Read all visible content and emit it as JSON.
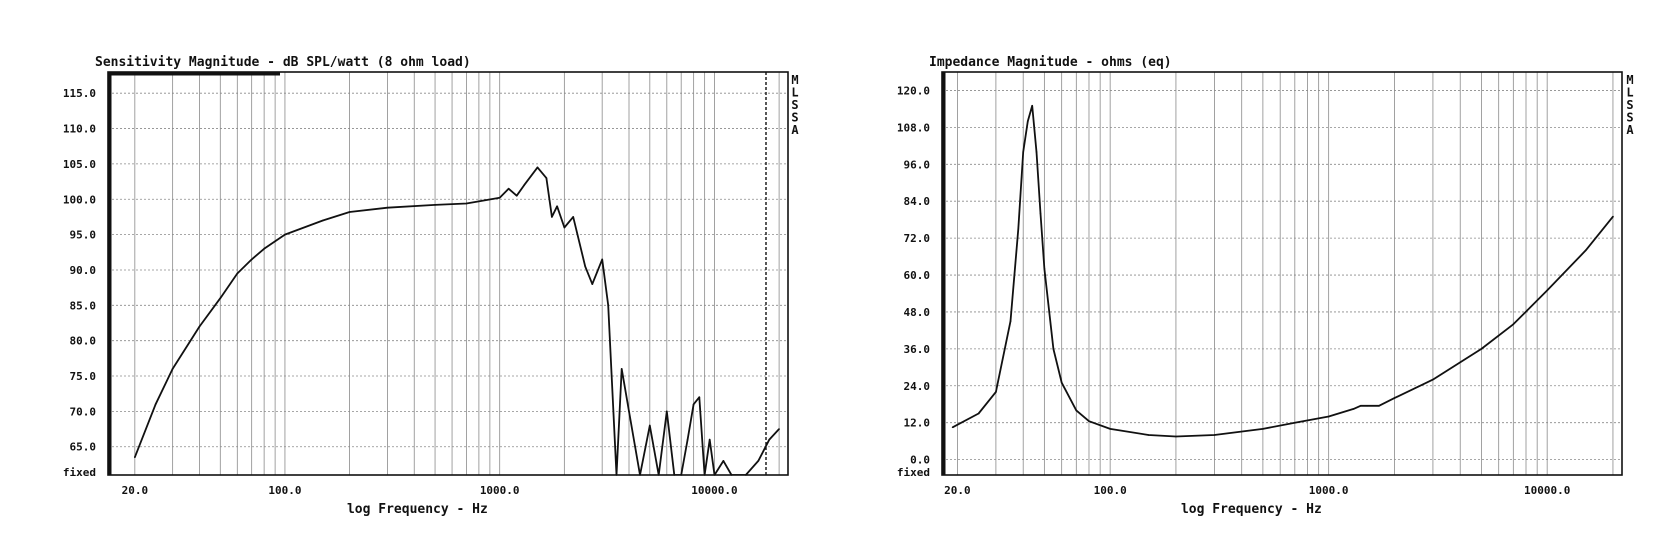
{
  "footer_label": "fixed",
  "watermark": "MLSSA",
  "chart_data": [
    {
      "type": "line",
      "title": "Sensitivity Magnitude - dB SPL/watt (8 ohm load)",
      "xlabel": "log Frequency - Hz",
      "ylabel": "",
      "xscale": "log",
      "xlim": [
        15,
        22000
      ],
      "ylim": [
        61,
        118
      ],
      "x_ticks": [
        20,
        100,
        1000,
        10000
      ],
      "x_tick_labels": [
        "20.0",
        "100.0",
        "1000.0",
        "10000.0"
      ],
      "y_ticks": [
        65,
        70,
        75,
        80,
        85,
        90,
        95,
        100,
        105,
        110,
        115
      ],
      "y_tick_labels": [
        "65.0",
        "70.0",
        "75.0",
        "80.0",
        "85.0",
        "90.0",
        "95.0",
        "100.0",
        "105.0",
        "110.0",
        "115.0"
      ],
      "grid": true,
      "series": [
        {
          "x": [
            20,
            25,
            30,
            40,
            50,
            60,
            70,
            80,
            100,
            150,
            200,
            300,
            500,
            700,
            1000,
            1100,
            1200,
            1300,
            1500,
            1650,
            1750,
            1850,
            2000,
            2200,
            2500,
            2700,
            3000,
            3200,
            3500,
            3700,
            4000,
            4500,
            5000,
            5500,
            6000,
            6500,
            7000,
            7500,
            8000,
            8500,
            9000,
            9500,
            10000,
            11000,
            12000,
            14000,
            16000,
            18000,
            20000
          ],
          "y": [
            63.5,
            71,
            76,
            82,
            86,
            89.5,
            91.5,
            93,
            95,
            97,
            98.2,
            98.8,
            99.2,
            99.4,
            100.2,
            101.5,
            100.5,
            102,
            104.5,
            103,
            97.5,
            99,
            96,
            97.5,
            90.5,
            88,
            91.5,
            85,
            61,
            76,
            70,
            61,
            68,
            61,
            70,
            61,
            61,
            66,
            71,
            72,
            61,
            66,
            61,
            63,
            61,
            61,
            63,
            66,
            67.5
          ]
        }
      ]
    },
    {
      "type": "line",
      "title": "Impedance Magnitude - ohms (eq)",
      "xlabel": "log Frequency - Hz",
      "ylabel": "",
      "xscale": "log",
      "xlim": [
        17,
        22000
      ],
      "ylim": [
        -5,
        126
      ],
      "x_ticks": [
        20,
        100,
        1000,
        10000
      ],
      "x_tick_labels": [
        "20.0",
        "100.0",
        "1000.0",
        "10000.0"
      ],
      "y_ticks": [
        0,
        12,
        24,
        36,
        48,
        60,
        72,
        84,
        96,
        108,
        120
      ],
      "y_tick_labels": [
        "0.0",
        "12.0",
        "24.0",
        "36.0",
        "48.0",
        "60.0",
        "72.0",
        "84.0",
        "96.0",
        "108.0",
        "120.0"
      ],
      "grid": true,
      "series": [
        {
          "x": [
            19,
            25,
            30,
            35,
            38,
            40,
            42,
            44,
            46,
            48,
            50,
            55,
            60,
            70,
            80,
            100,
            150,
            200,
            300,
            500,
            700,
            1000,
            1300,
            1400,
            1500,
            1700,
            2000,
            3000,
            5000,
            7000,
            10000,
            15000,
            20000
          ],
          "y": [
            10.5,
            15,
            22,
            45,
            75,
            100,
            110,
            115,
            100,
            80,
            62,
            36,
            25,
            16,
            12.5,
            10,
            8,
            7.5,
            8,
            10,
            12,
            14,
            16.5,
            17.5,
            17.5,
            17.5,
            20,
            26,
            36,
            44,
            55,
            68,
            79
          ]
        }
      ]
    }
  ]
}
